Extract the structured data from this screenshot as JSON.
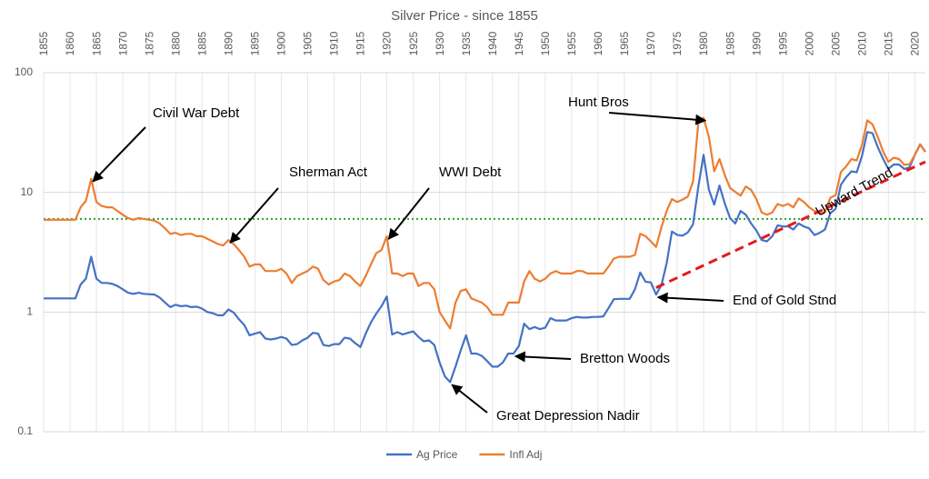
{
  "chart_data": {
    "type": "line",
    "title": "Silver Price - since 1855",
    "x": [
      1855,
      1856,
      1857,
      1858,
      1859,
      1860,
      1861,
      1862,
      1863,
      1864,
      1865,
      1866,
      1867,
      1868,
      1869,
      1870,
      1871,
      1872,
      1873,
      1874,
      1875,
      1876,
      1877,
      1878,
      1879,
      1880,
      1881,
      1882,
      1883,
      1884,
      1885,
      1886,
      1887,
      1888,
      1889,
      1890,
      1891,
      1892,
      1893,
      1894,
      1895,
      1896,
      1897,
      1898,
      1899,
      1900,
      1901,
      1902,
      1903,
      1904,
      1905,
      1906,
      1907,
      1908,
      1909,
      1910,
      1911,
      1912,
      1913,
      1914,
      1915,
      1916,
      1917,
      1918,
      1919,
      1920,
      1921,
      1922,
      1923,
      1924,
      1925,
      1926,
      1927,
      1928,
      1929,
      1930,
      1931,
      1932,
      1933,
      1934,
      1935,
      1936,
      1937,
      1938,
      1939,
      1940,
      1941,
      1942,
      1943,
      1944,
      1945,
      1946,
      1947,
      1948,
      1949,
      1950,
      1951,
      1952,
      1953,
      1954,
      1955,
      1956,
      1957,
      1958,
      1959,
      1960,
      1961,
      1962,
      1963,
      1964,
      1965,
      1966,
      1967,
      1968,
      1969,
      1970,
      1971,
      1972,
      1973,
      1974,
      1975,
      1976,
      1977,
      1978,
      1979,
      1980,
      1981,
      1982,
      1983,
      1984,
      1985,
      1986,
      1987,
      1988,
      1989,
      1990,
      1991,
      1992,
      1993,
      1994,
      1995,
      1996,
      1997,
      1998,
      1999,
      2000,
      2001,
      2002,
      2003,
      2004,
      2005,
      2006,
      2007,
      2008,
      2009,
      2010,
      2011,
      2012,
      2013,
      2014,
      2015,
      2016,
      2017,
      2018,
      2019,
      2020,
      2021,
      2022
    ],
    "series": [
      {
        "name": "Ag Price",
        "color": "#4472c4",
        "values": [
          1.3,
          1.3,
          1.3,
          1.3,
          1.3,
          1.3,
          1.3,
          1.7,
          1.9,
          2.9,
          1.9,
          1.75,
          1.75,
          1.72,
          1.65,
          1.55,
          1.45,
          1.42,
          1.45,
          1.42,
          1.41,
          1.4,
          1.32,
          1.2,
          1.1,
          1.15,
          1.12,
          1.13,
          1.1,
          1.11,
          1.07,
          1.0,
          0.98,
          0.94,
          0.94,
          1.05,
          0.99,
          0.87,
          0.78,
          0.64,
          0.66,
          0.68,
          0.6,
          0.59,
          0.6,
          0.62,
          0.6,
          0.53,
          0.54,
          0.58,
          0.61,
          0.67,
          0.66,
          0.53,
          0.52,
          0.54,
          0.54,
          0.61,
          0.6,
          0.55,
          0.51,
          0.66,
          0.82,
          0.97,
          1.12,
          1.35,
          0.65,
          0.68,
          0.65,
          0.67,
          0.69,
          0.62,
          0.57,
          0.58,
          0.53,
          0.38,
          0.29,
          0.26,
          0.35,
          0.48,
          0.64,
          0.45,
          0.45,
          0.43,
          0.39,
          0.35,
          0.35,
          0.38,
          0.45,
          0.45,
          0.52,
          0.8,
          0.72,
          0.75,
          0.72,
          0.74,
          0.89,
          0.85,
          0.85,
          0.85,
          0.89,
          0.91,
          0.9,
          0.9,
          0.91,
          0.91,
          0.92,
          1.08,
          1.28,
          1.29,
          1.29,
          1.29,
          1.55,
          2.14,
          1.79,
          1.77,
          1.4,
          1.68,
          2.56,
          4.71,
          4.42,
          4.35,
          4.62,
          5.4,
          11.1,
          20.6,
          10.5,
          7.9,
          11.4,
          8.1,
          6.1,
          5.5,
          7.0,
          6.5,
          5.5,
          4.8,
          4.0,
          3.9,
          4.3,
          5.3,
          5.2,
          5.2,
          4.9,
          5.5,
          5.2,
          5.0,
          4.4,
          4.6,
          4.9,
          6.7,
          7.3,
          11.6,
          13.4,
          15,
          14.7,
          20.2,
          32,
          31.2,
          23.8,
          19.1,
          15.7,
          17.1,
          17.1,
          15.7,
          16.2,
          20.6,
          25.2,
          21.8
        ]
      },
      {
        "name": "Infl Adj",
        "color": "#ed7d31",
        "values": [
          5.9,
          5.9,
          5.9,
          5.9,
          5.9,
          5.9,
          5.9,
          7.5,
          8.5,
          13,
          8.3,
          7.7,
          7.5,
          7.5,
          7.0,
          6.5,
          6.1,
          5.9,
          6.1,
          6.0,
          5.9,
          5.8,
          5.5,
          5.0,
          4.5,
          4.6,
          4.4,
          4.5,
          4.5,
          4.3,
          4.3,
          4.1,
          3.9,
          3.7,
          3.6,
          4.0,
          3.7,
          3.3,
          2.9,
          2.4,
          2.5,
          2.5,
          2.2,
          2.2,
          2.2,
          2.3,
          2.1,
          1.75,
          2.0,
          2.1,
          2.2,
          2.4,
          2.3,
          1.85,
          1.7,
          1.8,
          1.85,
          2.1,
          2.0,
          1.8,
          1.65,
          2.0,
          2.5,
          3.1,
          3.3,
          4.3,
          2.1,
          2.1,
          2.0,
          2.1,
          2.1,
          1.65,
          1.75,
          1.75,
          1.55,
          1.0,
          0.85,
          0.73,
          1.2,
          1.5,
          1.55,
          1.3,
          1.25,
          1.2,
          1.1,
          0.95,
          0.95,
          0.95,
          1.2,
          1.2,
          1.2,
          1.8,
          2.2,
          1.9,
          1.8,
          1.9,
          2.1,
          2.2,
          2.1,
          2.1,
          2.1,
          2.2,
          2.2,
          2.1,
          2.1,
          2.1,
          2.1,
          2.4,
          2.8,
          2.9,
          2.9,
          2.9,
          3.0,
          4.5,
          4.3,
          3.9,
          3.5,
          5.1,
          7.0,
          8.8,
          8.3,
          8.7,
          9.2,
          12.3,
          38,
          42,
          29,
          15,
          19,
          14,
          10.9,
          10.1,
          9.4,
          11.2,
          10.5,
          8.8,
          6.8,
          6.5,
          6.8,
          8.0,
          7.7,
          8.0,
          7.5,
          8.9,
          8.3,
          7.5,
          7.0,
          6.7,
          6.8,
          9.0,
          9.5,
          14.8,
          16.5,
          19,
          18.5,
          25,
          40,
          37,
          29,
          22,
          18,
          19.5,
          19,
          17,
          17.2,
          20.5,
          25,
          22
        ]
      }
    ],
    "xlim": [
      1855,
      2022
    ],
    "xticks": [
      1855,
      1860,
      1865,
      1870,
      1875,
      1880,
      1885,
      1890,
      1895,
      1900,
      1905,
      1910,
      1915,
      1920,
      1925,
      1930,
      1935,
      1940,
      1945,
      1950,
      1955,
      1960,
      1965,
      1970,
      1975,
      1980,
      1985,
      1990,
      1995,
      2000,
      2005,
      2010,
      2015,
      2020
    ],
    "ylim": [
      0.1,
      100
    ],
    "yticks": [
      0.1,
      1,
      10,
      100
    ],
    "log_y": true,
    "grid": true,
    "legend": "bottom",
    "reference_line": {
      "value": 6,
      "color": "#2ca02c"
    },
    "trend": {
      "label": "Upward Trend",
      "x": [
        1971,
        2022
      ],
      "values": [
        1.6,
        18
      ],
      "color": "#e31a1c"
    },
    "annotations": [
      {
        "text": "Civil War Debt",
        "x": 1864,
        "y": 13
      },
      {
        "text": "Sherman Act",
        "x": 1890,
        "y": 4.0
      },
      {
        "text": "WWI Debt",
        "x": 1920,
        "y": 4.3
      },
      {
        "text": "Hunt Bros",
        "x": 1980,
        "y": 42
      },
      {
        "text": "End of Gold Stnd",
        "x": 1971,
        "y": 1.4
      },
      {
        "text": "Bretton Woods",
        "x": 1944,
        "y": 0.45
      },
      {
        "text": "Great Depression Nadir",
        "x": 1932,
        "y": 0.26
      }
    ]
  }
}
